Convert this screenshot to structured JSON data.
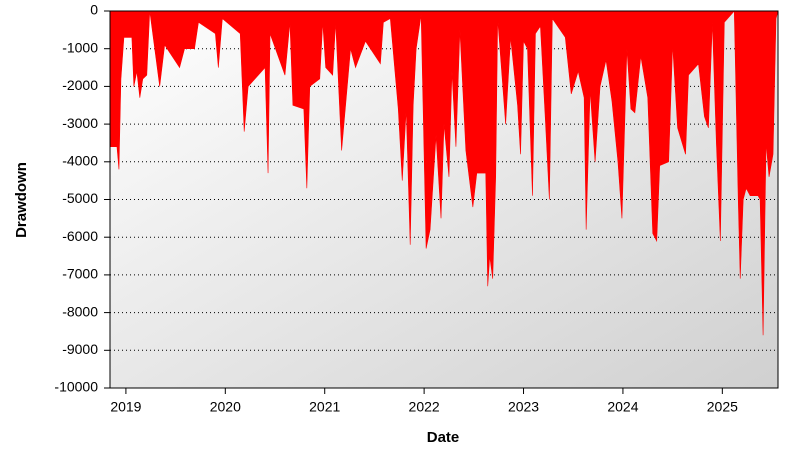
{
  "chart_data": {
    "type": "area",
    "xlabel": "Date",
    "ylabel": "Drawdown",
    "color": "#ff0000",
    "grid": true,
    "xlim": [
      2018.84,
      2025.56
    ],
    "xticks": [
      2019,
      2020,
      2021,
      2022,
      2023,
      2024,
      2025
    ],
    "ylim": [
      -10000,
      0
    ],
    "yticks": [
      -10000,
      -9000,
      -8000,
      -7000,
      -6000,
      -5000,
      -4000,
      -3000,
      -2000,
      -1000,
      0
    ],
    "x": [
      2018.84,
      2018.91,
      2018.93,
      2018.95,
      2018.98,
      2019.06,
      2019.08,
      2019.11,
      2019.14,
      2019.17,
      2019.21,
      2019.24,
      2019.34,
      2019.39,
      2019.54,
      2019.59,
      2019.69,
      2019.73,
      2019.9,
      2019.93,
      2019.97,
      2020.15,
      2020.19,
      2020.23,
      2020.4,
      2020.43,
      2020.45,
      2020.6,
      2020.65,
      2020.68,
      2020.79,
      2020.82,
      2020.85,
      2020.95,
      2020.98,
      2021.01,
      2021.08,
      2021.11,
      2021.17,
      2021.21,
      2021.26,
      2021.31,
      2021.41,
      2021.56,
      2021.59,
      2021.66,
      2021.74,
      2021.78,
      2021.82,
      2021.86,
      2021.89,
      2021.92,
      2021.97,
      2022.02,
      2022.06,
      2022.12,
      2022.17,
      2022.2,
      2022.25,
      2022.28,
      2022.32,
      2022.36,
      2022.42,
      2022.49,
      2022.53,
      2022.62,
      2022.64,
      2022.66,
      2022.69,
      2022.72,
      2022.74,
      2022.82,
      2022.87,
      2022.94,
      2022.97,
      2023.0,
      2023.04,
      2023.09,
      2023.12,
      2023.17,
      2023.22,
      2023.26,
      2023.29,
      2023.42,
      2023.48,
      2023.55,
      2023.61,
      2023.63,
      2023.67,
      2023.72,
      2023.77,
      2023.83,
      2023.89,
      2023.95,
      2023.99,
      2024.04,
      2024.08,
      2024.12,
      2024.18,
      2024.25,
      2024.3,
      2024.34,
      2024.37,
      2024.46,
      2024.5,
      2024.55,
      2024.63,
      2024.66,
      2024.76,
      2024.82,
      2024.86,
      2024.9,
      2024.94,
      2024.98,
      2025.02,
      2025.12,
      2025.16,
      2025.18,
      2025.21,
      2025.24,
      2025.28,
      2025.36,
      2025.38,
      2025.41,
      2025.44,
      2025.47,
      2025.51,
      2025.54,
      2025.56
    ],
    "values": [
      -3600,
      -3600,
      -4200,
      -1800,
      -700,
      -700,
      -2000,
      -1600,
      -2300,
      -1800,
      -1700,
      0,
      -2000,
      -900,
      -1500,
      -1000,
      -1000,
      -300,
      -600,
      -1500,
      -200,
      -600,
      -3200,
      -2000,
      -1500,
      -4300,
      -600,
      -1700,
      -300,
      -2500,
      -2600,
      -4700,
      -2000,
      -1800,
      -300,
      -1500,
      -1700,
      -300,
      -3700,
      -2500,
      -1000,
      -1500,
      -800,
      -1400,
      -300,
      -200,
      -2600,
      -4500,
      -2600,
      -6200,
      -2500,
      -1000,
      -100,
      -6300,
      -5800,
      -3300,
      -5500,
      -3000,
      -4400,
      -1600,
      -3600,
      -500,
      -3700,
      -5200,
      -4300,
      -4300,
      -7300,
      -6500,
      -7100,
      -4400,
      -200,
      -3000,
      -700,
      -2500,
      -3800,
      -800,
      -1000,
      -4900,
      -600,
      -400,
      -2900,
      -5000,
      -200,
      -700,
      -2200,
      -1600,
      -2300,
      -5800,
      -2100,
      -4000,
      -2000,
      -1300,
      -2400,
      -4000,
      -5500,
      -1000,
      -2600,
      -2700,
      -1200,
      -2300,
      -5900,
      -6100,
      -4100,
      -4000,
      -900,
      -3100,
      -3800,
      -1700,
      -1400,
      -2800,
      -3100,
      -300,
      -3500,
      -6100,
      -300,
      0,
      -5000,
      -7100,
      -5000,
      -4700,
      -4900,
      -4900,
      -5000,
      -8600,
      -3500,
      -4400,
      -3800,
      -200,
      0
    ]
  }
}
